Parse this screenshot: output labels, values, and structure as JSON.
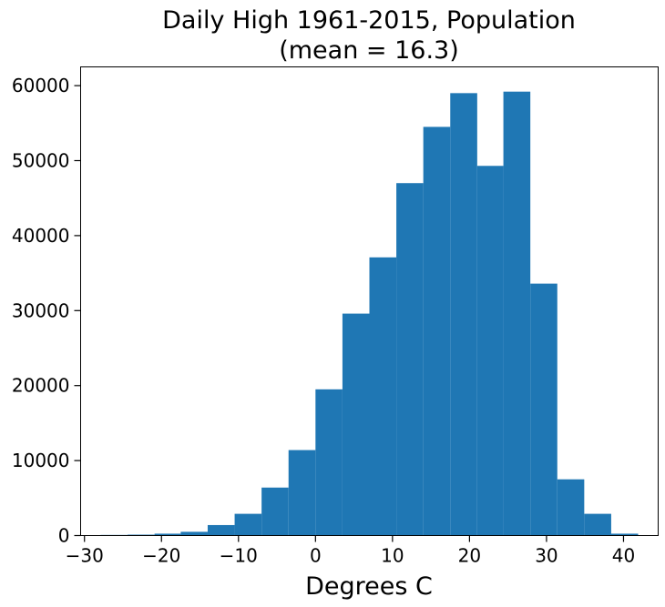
{
  "chart_data": {
    "type": "bar",
    "title_lines": [
      "Daily High 1961-2015, Population",
      "(mean = 16.3)"
    ],
    "xlabel": "Degrees C",
    "ylabel": "",
    "xlim": [
      -30.5,
      44.5
    ],
    "ylim": [
      0,
      62500
    ],
    "x_ticks": [
      -30,
      -20,
      -10,
      0,
      10,
      20,
      30,
      40
    ],
    "x_tick_labels": [
      "−30",
      "−20",
      "−10",
      "0",
      "10",
      "20",
      "30",
      "40"
    ],
    "y_ticks": [
      0,
      10000,
      20000,
      30000,
      40000,
      50000,
      60000
    ],
    "y_tick_labels": [
      "0",
      "10000",
      "20000",
      "30000",
      "40000",
      "50000",
      "60000"
    ],
    "bin_edges": [
      -27.9,
      -24.4,
      -20.9,
      -17.5,
      -14.0,
      -10.5,
      -7.0,
      -3.5,
      0.0,
      3.5,
      7.0,
      10.5,
      14.0,
      17.5,
      21.0,
      24.4,
      27.9,
      31.4,
      34.9,
      38.4,
      41.9
    ],
    "values": [
      80,
      120,
      250,
      500,
      1400,
      2900,
      6400,
      11400,
      19500,
      29600,
      37100,
      47000,
      54500,
      59000,
      49300,
      59200,
      33600,
      7500,
      2900,
      250
    ],
    "bar_color": "#1f77b4",
    "grid": false,
    "legend": "none"
  }
}
